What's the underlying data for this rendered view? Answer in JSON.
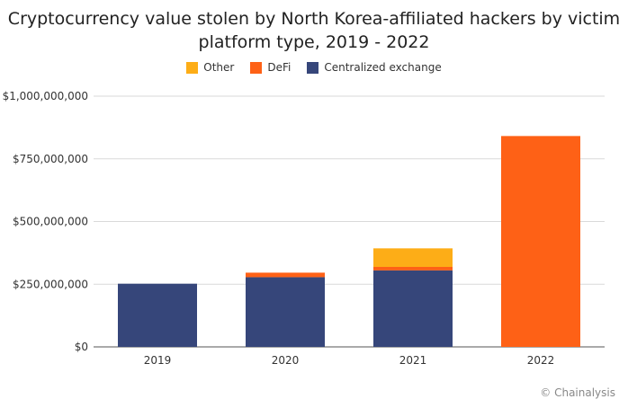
{
  "chart_data": {
    "type": "bar",
    "stacked": true,
    "title_lines": [
      "Cryptocurrency value stolen by North Korea-affiliated hackers by victim",
      "platform type, 2019 - 2022"
    ],
    "categories": [
      "2019",
      "2020",
      "2021",
      "2022"
    ],
    "series": [
      {
        "name": "Centralized exchange",
        "color": "#36467a",
        "values": [
          252000000,
          278000000,
          305000000,
          0
        ]
      },
      {
        "name": "DeFi",
        "color": "#fe6116",
        "values": [
          0,
          18000000,
          14000000,
          841000000
        ]
      },
      {
        "name": "Other",
        "color": "#fdad17",
        "values": [
          0,
          0,
          74000000,
          0
        ]
      }
    ],
    "legend_order": [
      "Other",
      "DeFi",
      "Centralized exchange"
    ],
    "ylim": [
      0,
      1000000000
    ],
    "yticks": [
      0,
      250000000,
      500000000,
      750000000,
      1000000000
    ],
    "ytick_labels": [
      "$0",
      "$250,000,000",
      "$500,000,000",
      "$750,000,000",
      "$1,000,000,000"
    ],
    "xlabel": "",
    "ylabel": "",
    "grid": true,
    "legend_position": "top-center"
  },
  "credit": "© Chainalysis"
}
